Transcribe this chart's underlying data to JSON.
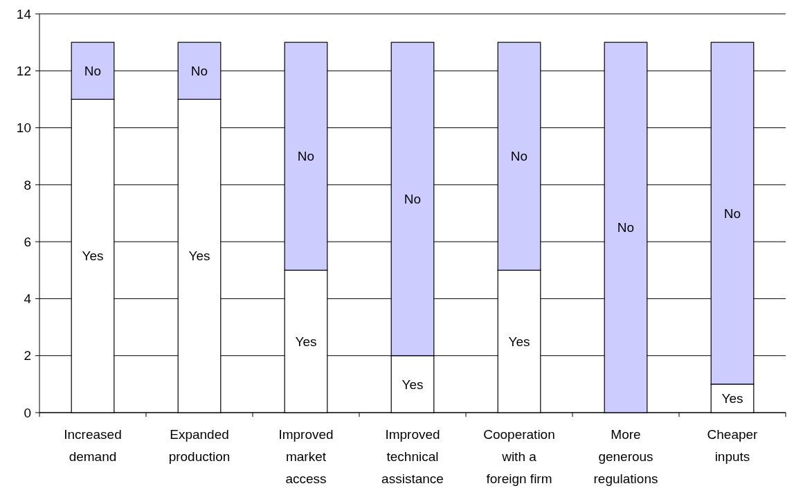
{
  "chart_data": {
    "type": "bar",
    "stacked": true,
    "categories": [
      "Increased demand",
      "Expanded production",
      "Improved market access",
      "Improved technical assistance",
      "Cooperation with a foreign firm",
      "More generous regulations",
      "Cheaper inputs"
    ],
    "series": [
      {
        "name": "Yes",
        "color": "#ffffff",
        "values": [
          11,
          11,
          5,
          2,
          5,
          0,
          1
        ]
      },
      {
        "name": "No",
        "color": "#ccccff",
        "values": [
          2,
          2,
          8,
          11,
          8,
          13,
          12
        ]
      }
    ],
    "ylim": [
      0,
      14
    ],
    "yticks": [
      0,
      2,
      4,
      6,
      8,
      10,
      12,
      14
    ],
    "grid": "y"
  }
}
